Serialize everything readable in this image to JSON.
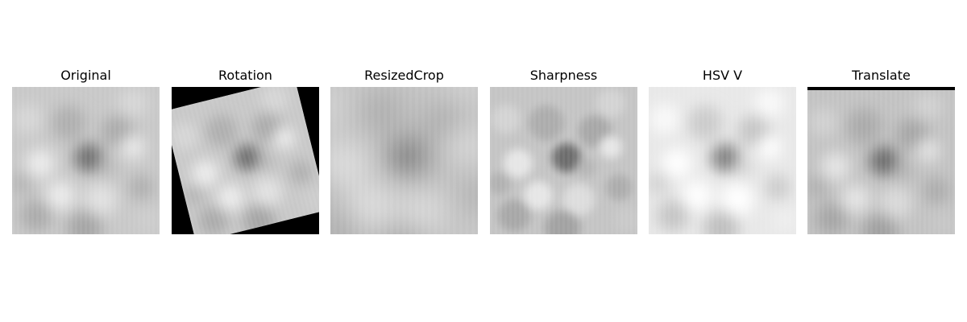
{
  "figure": {
    "background": "#ffffff",
    "panels": [
      {
        "title": "Original",
        "image": "original-texture-image",
        "brightness": 1.0,
        "blur": 1.0,
        "rotation_deg": 0,
        "translate_y_frac": 0,
        "crop_zoom": 1.0
      },
      {
        "title": "Rotation",
        "image": "rotated-texture-image",
        "brightness": 1.0,
        "blur": 1.0,
        "rotation_deg": -14,
        "translate_y_frac": 0,
        "crop_zoom": 1.0
      },
      {
        "title": "ResizedCrop",
        "image": "resized-crop-texture-image",
        "brightness": 0.98,
        "blur": 1.6,
        "rotation_deg": 0,
        "translate_y_frac": 0,
        "crop_zoom": 1.3
      },
      {
        "title": "Sharpness",
        "image": "sharpened-texture-image",
        "brightness": 0.98,
        "blur": 0.6,
        "rotation_deg": 0,
        "translate_y_frac": 0,
        "crop_zoom": 1.0
      },
      {
        "title": "HSV V",
        "image": "hsv-value-texture-image",
        "brightness": 1.16,
        "blur": 1.0,
        "rotation_deg": 0,
        "translate_y_frac": 0,
        "crop_zoom": 1.0
      },
      {
        "title": "Translate",
        "image": "translated-texture-image",
        "brightness": 0.97,
        "blur": 1.0,
        "rotation_deg": 0,
        "translate_y_frac": 0.022,
        "crop_zoom": 1.0
      }
    ]
  }
}
